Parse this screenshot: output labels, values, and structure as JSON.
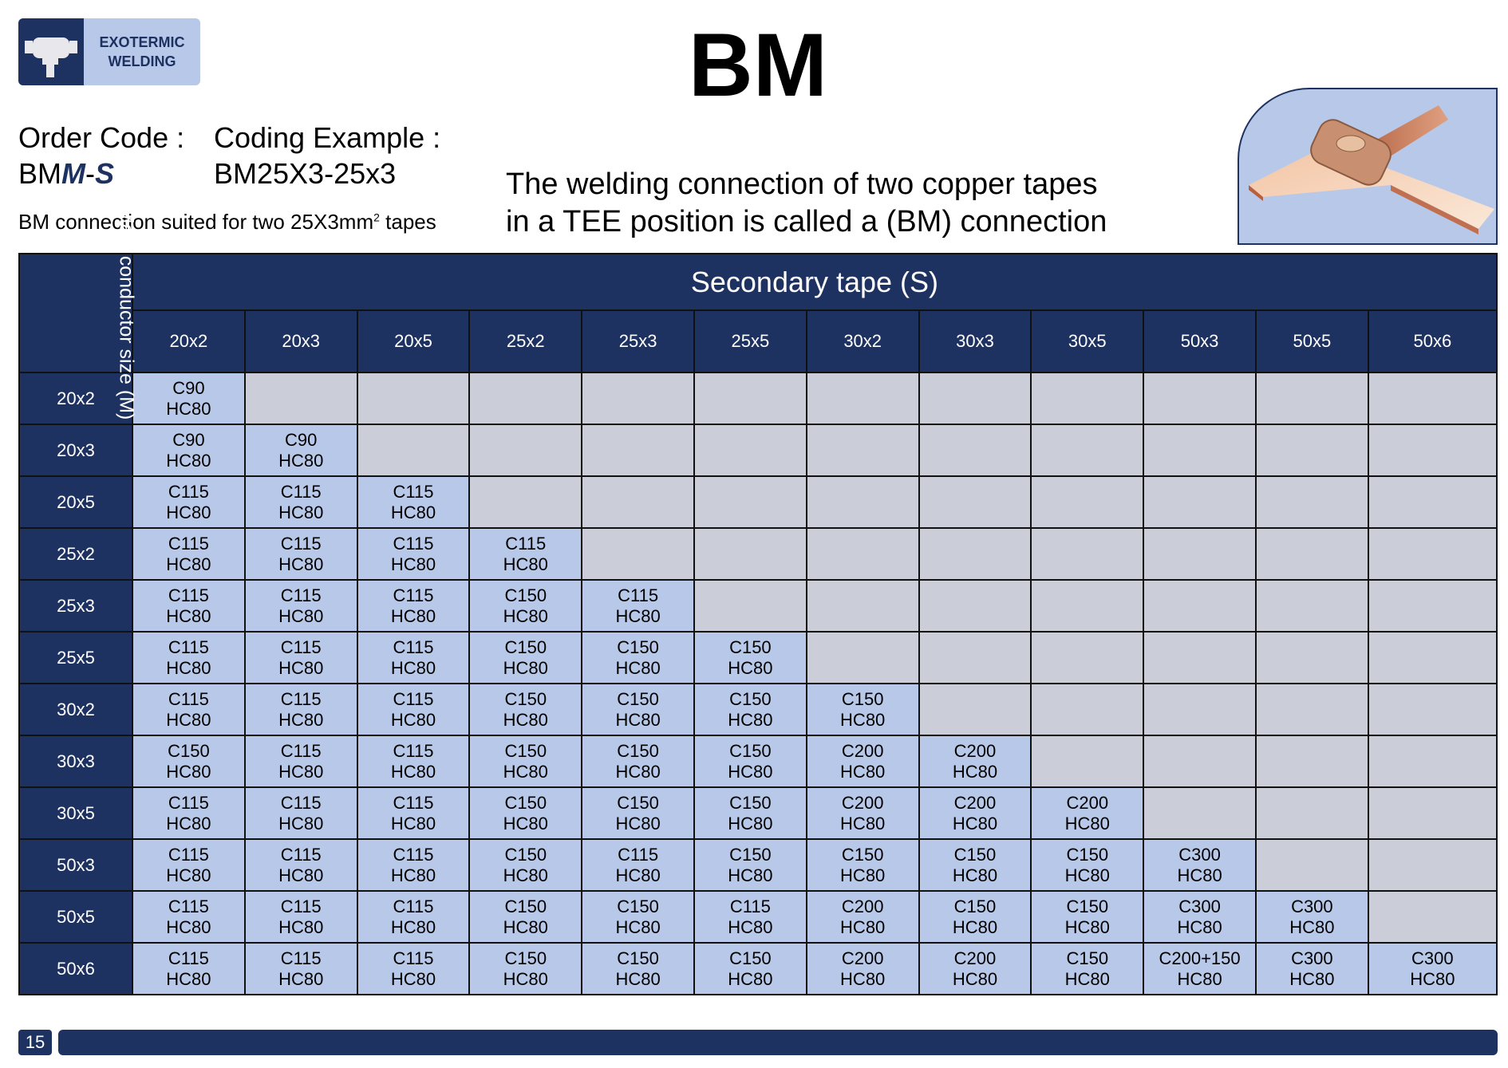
{
  "logo": {
    "line1": "EXOTERMIC",
    "line2": "WELDING"
  },
  "title": "BM",
  "order_code": {
    "label": "Order Code :",
    "value_prefix": "BM",
    "value_m": "M",
    "value_sep": "-",
    "value_s": "S"
  },
  "coding_example": {
    "label": "Coding Example :",
    "value": "BM25X3-25x3"
  },
  "note": {
    "text": "BM connection suited for two 25X3mm",
    "sup": "2",
    "suffix": " tapes"
  },
  "description": {
    "line1": "The welding connection of two copper tapes",
    "line2": "in a TEE position is called a (BM) connection"
  },
  "colors": {
    "navy": "#1e3262",
    "filled_cell": "#b8c8e8",
    "empty_cell": "#cbcdd9"
  },
  "table": {
    "main_header": "Main conductor size (M)",
    "secondary_header": "Secondary tape (S)",
    "columns": [
      "20x2",
      "20x3",
      "20x5",
      "25x2",
      "25x3",
      "25x5",
      "30x2",
      "30x3",
      "30x5",
      "50x3",
      "50x5",
      "50x6"
    ],
    "rows": [
      {
        "label": "20x2",
        "cells": [
          [
            "C90",
            "HC80"
          ]
        ]
      },
      {
        "label": "20x3",
        "cells": [
          [
            "C90",
            "HC80"
          ],
          [
            "C90",
            "HC80"
          ]
        ]
      },
      {
        "label": "20x5",
        "cells": [
          [
            "C115",
            "HC80"
          ],
          [
            "C115",
            "HC80"
          ],
          [
            "C115",
            "HC80"
          ]
        ]
      },
      {
        "label": "25x2",
        "cells": [
          [
            "C115",
            "HC80"
          ],
          [
            "C115",
            "HC80"
          ],
          [
            "C115",
            "HC80"
          ],
          [
            "C115",
            "HC80"
          ]
        ]
      },
      {
        "label": "25x3",
        "cells": [
          [
            "C115",
            "HC80"
          ],
          [
            "C115",
            "HC80"
          ],
          [
            "C115",
            "HC80"
          ],
          [
            "C150",
            "HC80"
          ],
          [
            "C115",
            "HC80"
          ]
        ]
      },
      {
        "label": "25x5",
        "cells": [
          [
            "C115",
            "HC80"
          ],
          [
            "C115",
            "HC80"
          ],
          [
            "C115",
            "HC80"
          ],
          [
            "C150",
            "HC80"
          ],
          [
            "C150",
            "HC80"
          ],
          [
            "C150",
            "HC80"
          ]
        ]
      },
      {
        "label": "30x2",
        "cells": [
          [
            "C115",
            "HC80"
          ],
          [
            "C115",
            "HC80"
          ],
          [
            "C115",
            "HC80"
          ],
          [
            "C150",
            "HC80"
          ],
          [
            "C150",
            "HC80"
          ],
          [
            "C150",
            "HC80"
          ],
          [
            "C150",
            "HC80"
          ]
        ]
      },
      {
        "label": "30x3",
        "cells": [
          [
            "C150",
            "HC80"
          ],
          [
            "C115",
            "HC80"
          ],
          [
            "C115",
            "HC80"
          ],
          [
            "C150",
            "HC80"
          ],
          [
            "C150",
            "HC80"
          ],
          [
            "C150",
            "HC80"
          ],
          [
            "C200",
            "HC80"
          ],
          [
            "C200",
            "HC80"
          ]
        ]
      },
      {
        "label": "30x5",
        "cells": [
          [
            "C115",
            "HC80"
          ],
          [
            "C115",
            "HC80"
          ],
          [
            "C115",
            "HC80"
          ],
          [
            "C150",
            "HC80"
          ],
          [
            "C150",
            "HC80"
          ],
          [
            "C150",
            "HC80"
          ],
          [
            "C200",
            "HC80"
          ],
          [
            "C200",
            "HC80"
          ],
          [
            "C200",
            "HC80"
          ]
        ]
      },
      {
        "label": "50x3",
        "cells": [
          [
            "C115",
            "HC80"
          ],
          [
            "C115",
            "HC80"
          ],
          [
            "C115",
            "HC80"
          ],
          [
            "C150",
            "HC80"
          ],
          [
            "C115",
            "HC80"
          ],
          [
            "C150",
            "HC80"
          ],
          [
            "C150",
            "HC80"
          ],
          [
            "C150",
            "HC80"
          ],
          [
            "C150",
            "HC80"
          ],
          [
            "C300",
            "HC80"
          ]
        ]
      },
      {
        "label": "50x5",
        "cells": [
          [
            "C115",
            "HC80"
          ],
          [
            "C115",
            "HC80"
          ],
          [
            "C115",
            "HC80"
          ],
          [
            "C150",
            "HC80"
          ],
          [
            "C150",
            "HC80"
          ],
          [
            "C115",
            "HC80"
          ],
          [
            "C200",
            "HC80"
          ],
          [
            "C150",
            "HC80"
          ],
          [
            "C150",
            "HC80"
          ],
          [
            "C300",
            "HC80"
          ],
          [
            "C300",
            "HC80"
          ]
        ]
      },
      {
        "label": "50x6",
        "cells": [
          [
            "C115",
            "HC80"
          ],
          [
            "C115",
            "HC80"
          ],
          [
            "C115",
            "HC80"
          ],
          [
            "C150",
            "HC80"
          ],
          [
            "C150",
            "HC80"
          ],
          [
            "C150",
            "HC80"
          ],
          [
            "C200",
            "HC80"
          ],
          [
            "C200",
            "HC80"
          ],
          [
            "C150",
            "HC80"
          ],
          [
            "C200+150",
            "HC80"
          ],
          [
            "C300",
            "HC80"
          ],
          [
            "C300",
            "HC80"
          ]
        ]
      }
    ]
  },
  "footer": {
    "page_number": "15"
  }
}
